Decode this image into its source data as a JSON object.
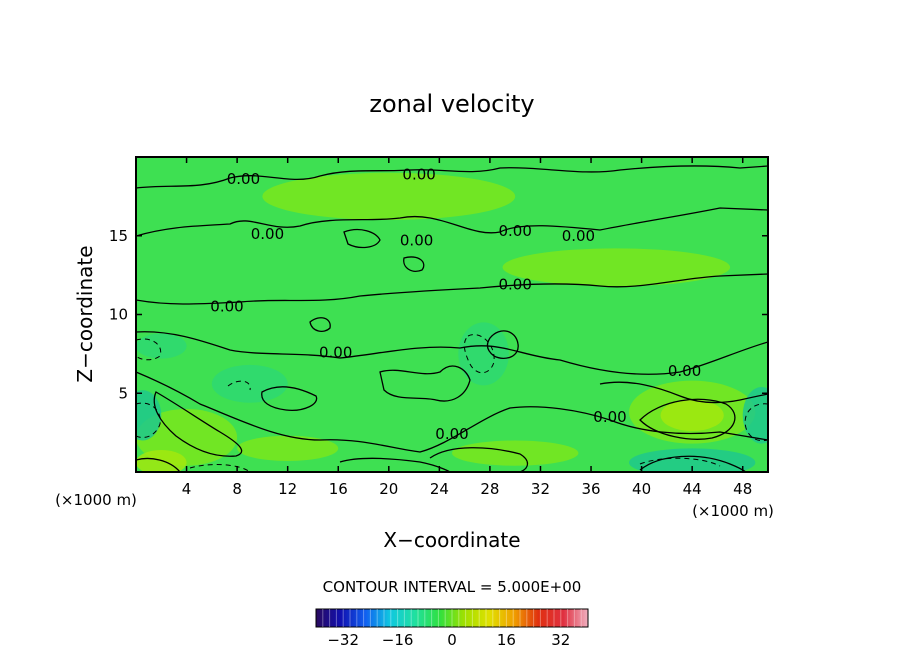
{
  "chart_data": {
    "type": "heatmap",
    "title": "zonal velocity",
    "xlabel": "X−coordinate",
    "ylabel": "Z−coordinate",
    "x_unit_left": "(×1000 m)",
    "x_unit_right": "(×1000 m)",
    "xlim": [
      0,
      50
    ],
    "ylim": [
      0,
      20
    ],
    "x_ticks": [
      4,
      8,
      12,
      16,
      20,
      24,
      28,
      32,
      36,
      40,
      44,
      48
    ],
    "y_ticks": [
      5,
      10,
      15
    ],
    "contour_interval_text": "CONTOUR INTERVAL = 5.000E+00",
    "contour_interval": 5,
    "contour_labels": [
      {
        "text": "0.00",
        "x": 8.5,
        "y": 18.6
      },
      {
        "text": "0.00",
        "x": 22.4,
        "y": 18.9
      },
      {
        "text": "0.00",
        "x": 10.4,
        "y": 15.1
      },
      {
        "text": "0.00",
        "x": 22.2,
        "y": 14.7
      },
      {
        "text": "0.00",
        "x": 30.0,
        "y": 15.3
      },
      {
        "text": "0.00",
        "x": 35.0,
        "y": 15.0
      },
      {
        "text": "0.00",
        "x": 30.0,
        "y": 11.9
      },
      {
        "text": "0.00",
        "x": 7.2,
        "y": 10.5
      },
      {
        "text": "0.00",
        "x": 15.8,
        "y": 7.6
      },
      {
        "text": "0.00",
        "x": 43.4,
        "y": 6.4
      },
      {
        "text": "0.00",
        "x": 37.5,
        "y": 3.5
      },
      {
        "text": "0.00",
        "x": 25.0,
        "y": 2.4
      }
    ],
    "colorbar": {
      "vmin": -40,
      "vmax": 40,
      "ticks": [
        -32,
        -16,
        0,
        16,
        32
      ],
      "tick_labels": [
        "−32",
        "−16",
        "0",
        "16",
        "32"
      ],
      "colormap": [
        "#2a0a5e",
        "#1010b0",
        "#1060f0",
        "#10c8e0",
        "#20e0a0",
        "#30e040",
        "#a0e000",
        "#e0e000",
        "#f0a000",
        "#e03010",
        "#e03040",
        "#f0b0c0"
      ]
    },
    "field_colors": {
      "background": "#3ee052",
      "positive_weak": "#7ae61c",
      "positive": "#a2e80e",
      "negative_weak": "#2ed872",
      "negative": "#1ec88c"
    },
    "grid": false
  }
}
